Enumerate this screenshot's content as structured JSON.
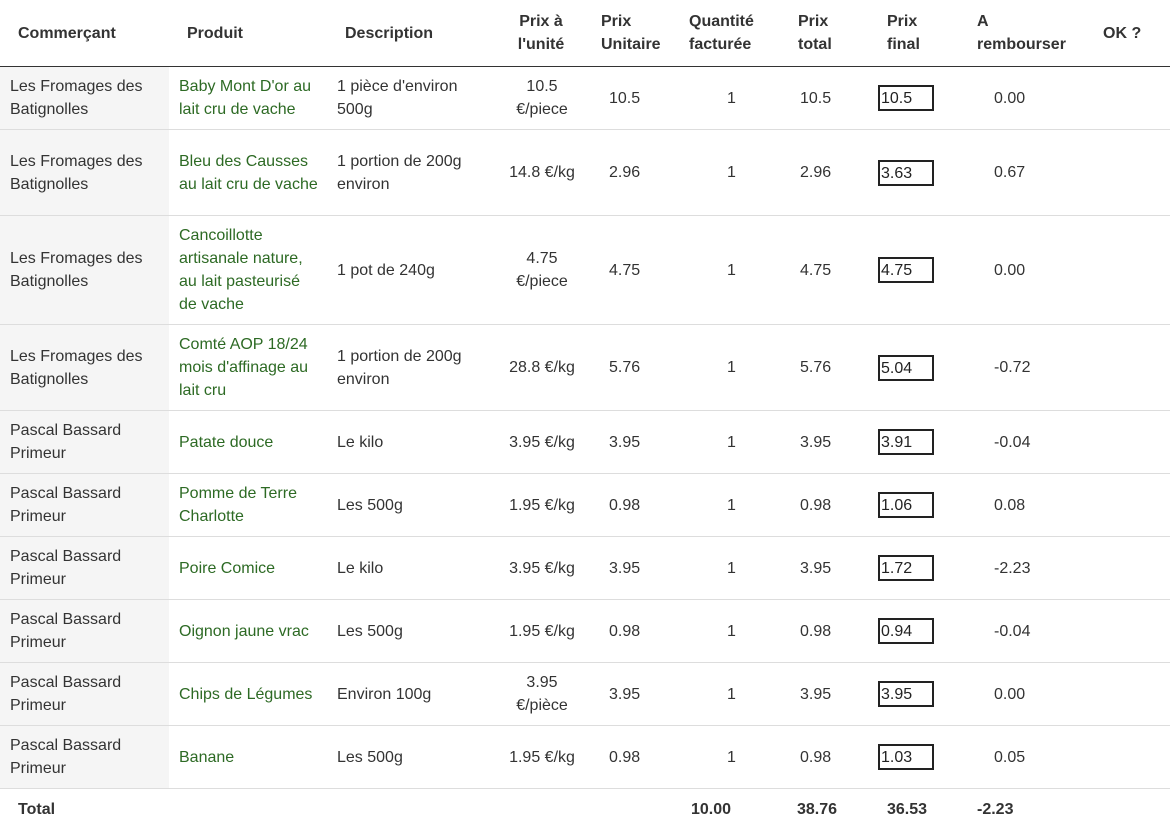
{
  "headers": {
    "merchant": "Commerçant",
    "product": "Produit",
    "description": "Description",
    "unit_price": [
      "Prix à",
      "l'unité"
    ],
    "unit_price2": [
      "Prix",
      "Unitaire"
    ],
    "qty": [
      "Quantité",
      "facturée"
    ],
    "total_price": [
      "Prix",
      "total"
    ],
    "final_price": [
      "Prix",
      "final"
    ],
    "refund": [
      "A",
      "rembourser"
    ],
    "ok": "OK ?"
  },
  "rows": [
    {
      "merchant": "Les Fromages des Batignolles",
      "product": "Baby Mont D'or au lait cru de vache",
      "description": "1 pièce d'environ 500g",
      "unit_price": "10.5 €/piece",
      "unit_price2": "10.5",
      "qty": "1",
      "total": "10.5",
      "final": "10.5",
      "refund": "0.00"
    },
    {
      "merchant": "Les Fromages des Batignolles",
      "product": "Bleu des Causses au lait cru de vache",
      "description": "1 portion de 200g environ",
      "unit_price": "14.8 €/kg",
      "unit_price2": "2.96",
      "qty": "1",
      "total": "2.96",
      "final": "3.63",
      "refund": "0.67"
    },
    {
      "merchant": "Les Fromages des Batignolles",
      "product": "Cancoillotte artisanale nature, au lait pasteurisé de vache",
      "description": "1 pot de 240g",
      "unit_price": "4.75 €/piece",
      "unit_price2": "4.75",
      "qty": "1",
      "total": "4.75",
      "final": "4.75",
      "refund": "0.00"
    },
    {
      "merchant": "Les Fromages des Batignolles",
      "product": "Comté AOP 18/24 mois d'affinage au lait cru",
      "description": "1 portion de 200g environ",
      "unit_price": "28.8 €/kg",
      "unit_price2": "5.76",
      "qty": "1",
      "total": "5.76",
      "final": "5.04",
      "refund": "-0.72"
    },
    {
      "merchant": "Pascal Bassard Primeur",
      "product": "Patate douce",
      "description": "Le kilo",
      "unit_price": "3.95 €/kg",
      "unit_price2": "3.95",
      "qty": "1",
      "total": "3.95",
      "final": "3.91",
      "refund": "-0.04"
    },
    {
      "merchant": "Pascal Bassard Primeur",
      "product": "Pomme de Terre Charlotte",
      "description": "Les 500g",
      "unit_price": "1.95 €/kg",
      "unit_price2": "0.98",
      "qty": "1",
      "total": "0.98",
      "final": "1.06",
      "refund": "0.08"
    },
    {
      "merchant": "Pascal Bassard Primeur",
      "product": "Poire Comice",
      "description": "Le kilo",
      "unit_price": "3.95 €/kg",
      "unit_price2": "3.95",
      "qty": "1",
      "total": "3.95",
      "final": "1.72",
      "refund": "-2.23"
    },
    {
      "merchant": "Pascal Bassard Primeur",
      "product": "Oignon jaune vrac",
      "description": "Les 500g",
      "unit_price": "1.95 €/kg",
      "unit_price2": "0.98",
      "qty": "1",
      "total": "0.98",
      "final": "0.94",
      "refund": "-0.04"
    },
    {
      "merchant": "Pascal Bassard Primeur",
      "product": "Chips de Légumes",
      "description": "Environ 100g",
      "unit_price": "3.95 €/pièce",
      "unit_price2": "3.95",
      "qty": "1",
      "total": "3.95",
      "final": "3.95",
      "refund": "0.00"
    },
    {
      "merchant": "Pascal Bassard Primeur",
      "product": "Banane",
      "description": "Les 500g",
      "unit_price": "1.95 €/kg",
      "unit_price2": "0.98",
      "qty": "1",
      "total": "0.98",
      "final": "1.03",
      "refund": "0.05"
    }
  ],
  "totals": {
    "label": "Total",
    "qty": "10.00",
    "total": "38.76",
    "final": "36.53",
    "refund": "-2.23"
  },
  "colors": {
    "product_link": "#2d6a24",
    "merchant_bg": "#f5f5f5"
  }
}
